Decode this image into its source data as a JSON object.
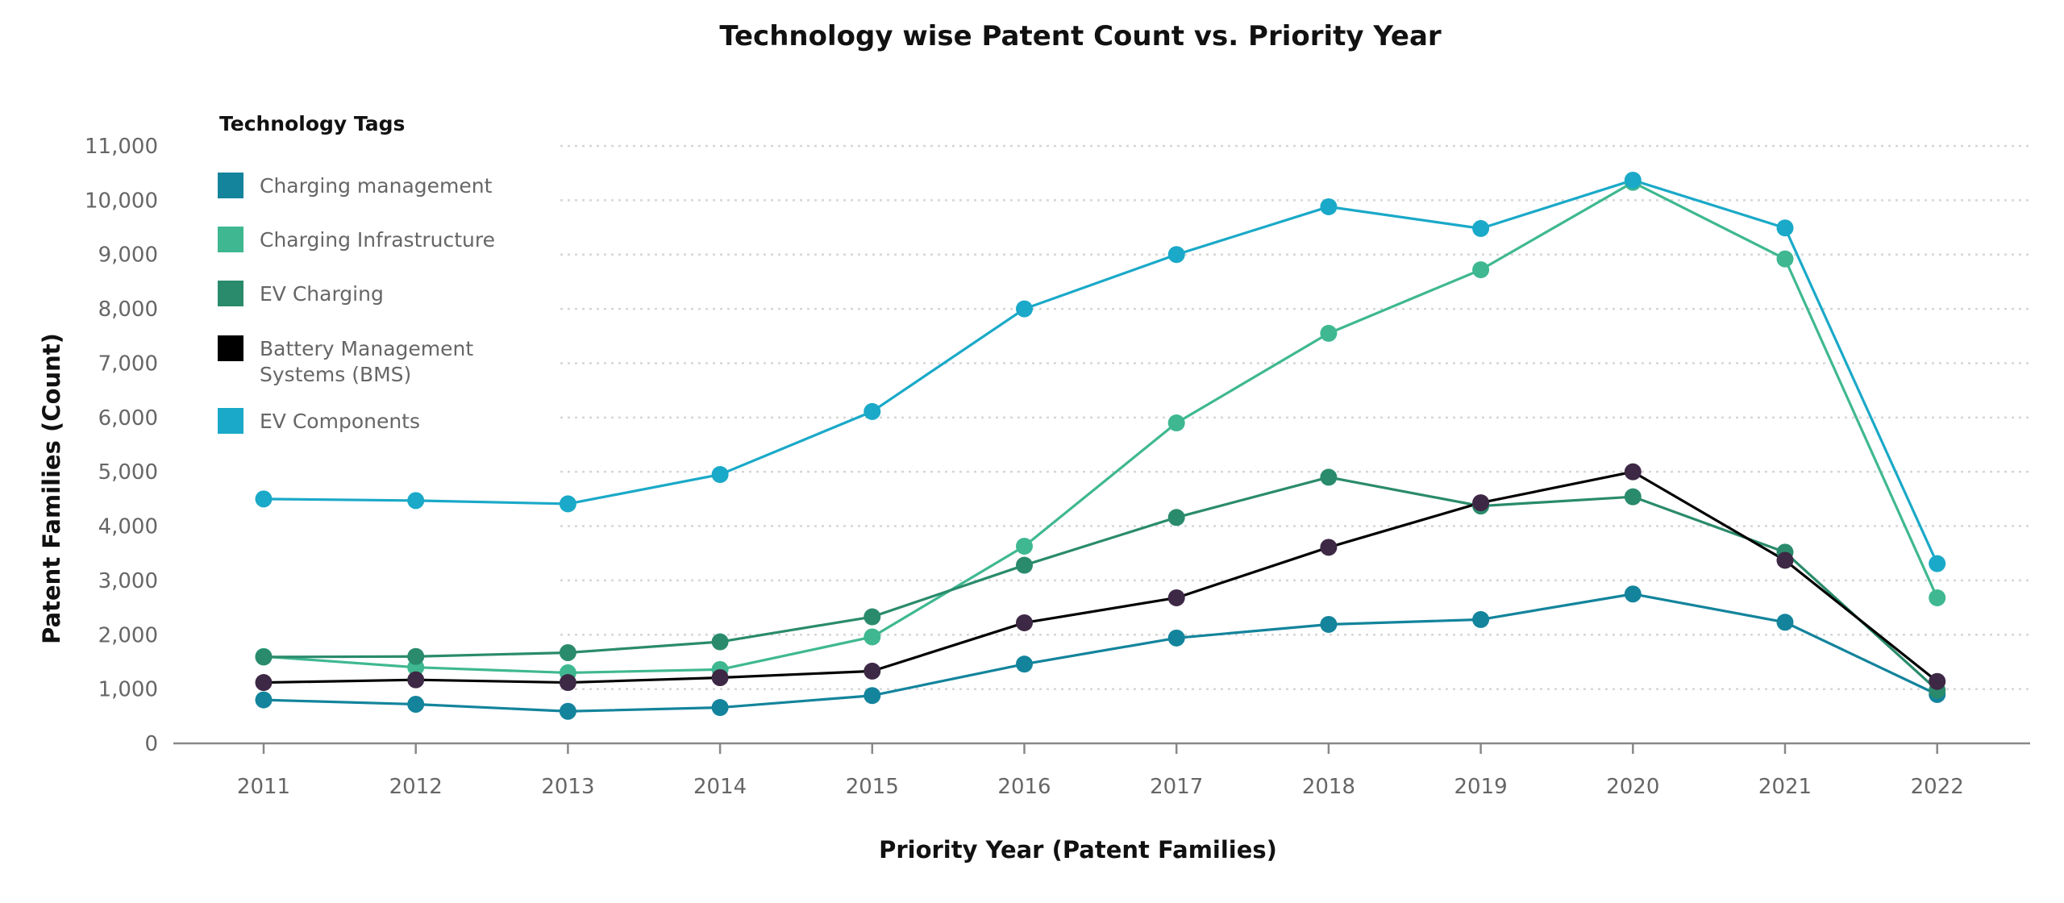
{
  "chart_data": {
    "type": "line",
    "title": "Technology wise Patent Count vs. Priority Year",
    "xlabel": "Priority Year (Patent Families)",
    "ylabel": "Patent Families (Count)",
    "ylim": [
      0,
      11000
    ],
    "yticks": [
      0,
      1000,
      2000,
      3000,
      4000,
      5000,
      6000,
      7000,
      8000,
      9000,
      10000,
      11000
    ],
    "ytick_labels": [
      "0",
      "1,000",
      "2,000",
      "3,000",
      "4,000",
      "5,000",
      "6,000",
      "7,000",
      "8,000",
      "9,000",
      "10,000",
      "11,000"
    ],
    "categories": [
      "2011",
      "2012",
      "2013",
      "2014",
      "2015",
      "2016",
      "2017",
      "2018",
      "2019",
      "2020",
      "2021",
      "2022"
    ],
    "grid": "horizontal dotted",
    "legend": {
      "title": "Technology Tags",
      "placement": "top-left"
    },
    "series": [
      {
        "name": "Charging management",
        "color": "#13849C",
        "values": [
          800,
          720,
          590,
          660,
          880,
          1460,
          1940,
          2190,
          2280,
          2750,
          2230,
          900
        ]
      },
      {
        "name": "Charging Infrastructure",
        "color": "#3FB891",
        "values": [
          1600,
          1400,
          1300,
          1360,
          1960,
          3630,
          5900,
          7550,
          8720,
          10330,
          8920,
          2680
        ]
      },
      {
        "name": "EV Charging",
        "color": "#2A8B6C",
        "values": [
          1590,
          1600,
          1670,
          1870,
          2330,
          3280,
          4160,
          4900,
          4370,
          4540,
          3520,
          980
        ]
      },
      {
        "name": "Battery Management Systems (BMS)",
        "legend_lines": [
          "Battery Management",
          "Systems (BMS)"
        ],
        "color": "#000000",
        "marker_color": "#3D2845",
        "values": [
          1120,
          1170,
          1120,
          1210,
          1330,
          2220,
          2680,
          3610,
          4430,
          5000,
          3370,
          1140
        ]
      },
      {
        "name": "EV Components",
        "color": "#1AA9C8",
        "values": [
          4500,
          4470,
          4410,
          4950,
          6110,
          8000,
          9000,
          9880,
          9480,
          10370,
          9490,
          3310
        ]
      }
    ]
  }
}
